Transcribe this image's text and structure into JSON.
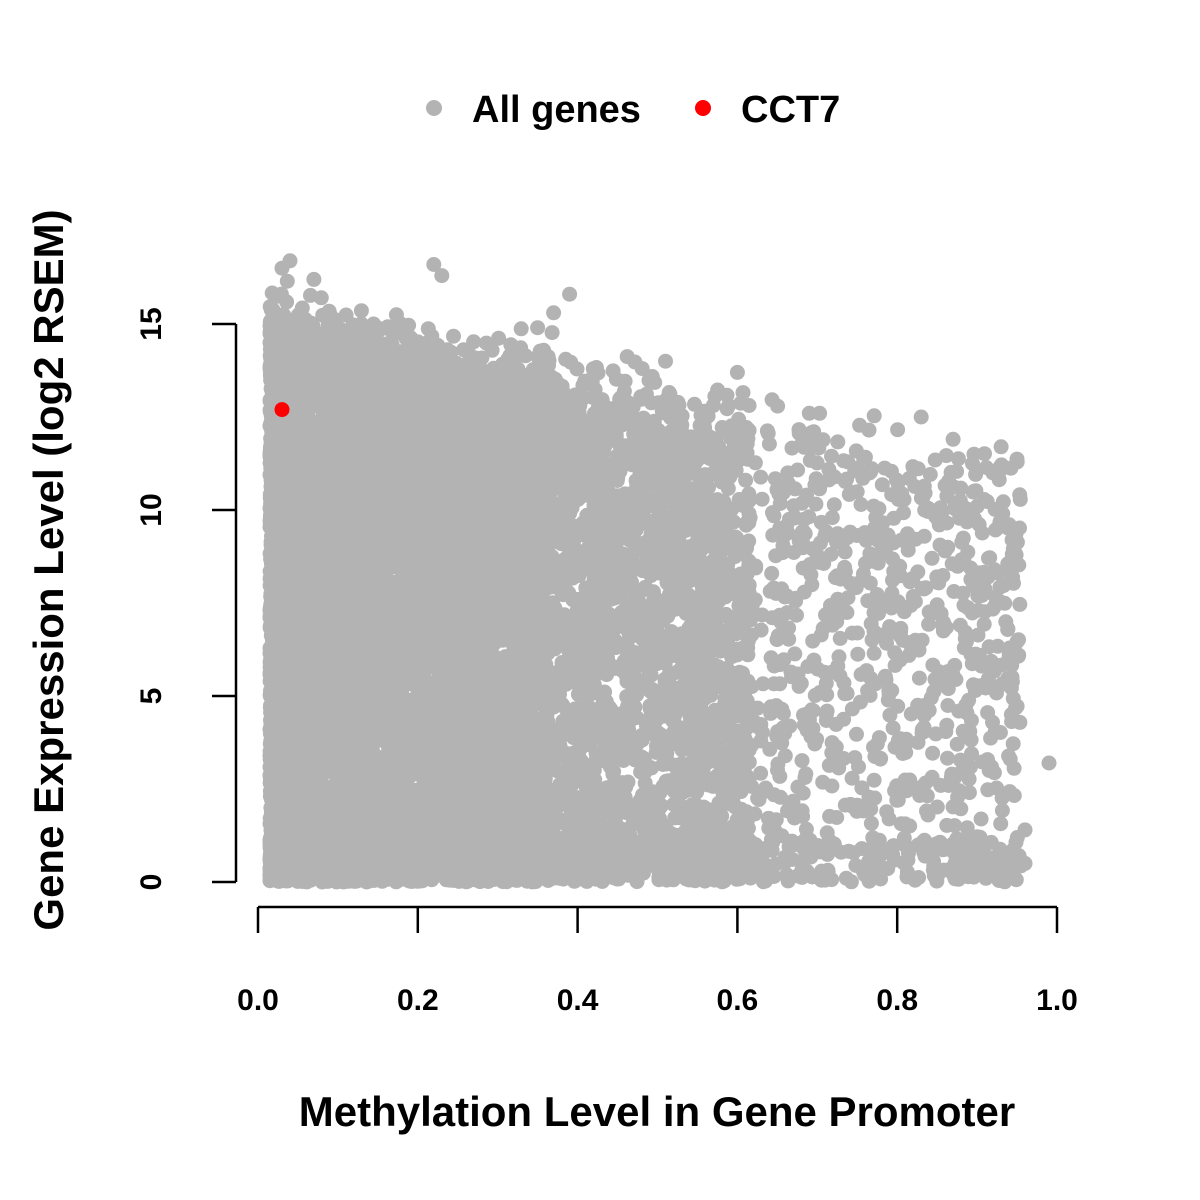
{
  "chart_data": {
    "type": "scatter",
    "title": "",
    "xlabel": "Methylation Level in Gene Promoter",
    "ylabel": "Gene Expression Level (log2 RSEM)",
    "xlim": [
      0.0,
      1.0
    ],
    "ylim": [
      0,
      15
    ],
    "x_ticks": [
      0.0,
      0.2,
      0.4,
      0.6,
      0.8,
      1.0
    ],
    "x_tick_labels": [
      "0.0",
      "0.2",
      "0.4",
      "0.6",
      "0.8",
      "1.0"
    ],
    "y_ticks": [
      0,
      5,
      10,
      15
    ],
    "y_tick_labels": [
      "0",
      "5",
      "10",
      "15"
    ],
    "legend": {
      "placement": "top",
      "entries": [
        {
          "label": "All genes",
          "color": "#b3b3b3"
        },
        {
          "label": "CCT7",
          "color": "#ff0000"
        }
      ]
    },
    "series": [
      {
        "name": "All genes",
        "color": "#b3b3b3",
        "approx_points": 12000,
        "description_points": [
          [
            0.04,
            16.7
          ],
          [
            0.03,
            16.5
          ],
          [
            0.07,
            16.2
          ],
          [
            0.22,
            16.6
          ],
          [
            0.23,
            16.3
          ],
          [
            0.39,
            15.8
          ],
          [
            0.37,
            15.3
          ],
          [
            0.35,
            14.9
          ],
          [
            0.51,
            14.0
          ],
          [
            0.6,
            13.7
          ],
          [
            0.69,
            12.6
          ],
          [
            0.83,
            12.5
          ],
          [
            0.87,
            11.9
          ],
          [
            0.93,
            11.7
          ],
          [
            0.95,
            11.3
          ],
          [
            0.99,
            3.2
          ],
          [
            0.96,
            1.4
          ],
          [
            0.96,
            0.5
          ],
          [
            0.02,
            1.8
          ],
          [
            0.02,
            1.3
          ]
        ]
      },
      {
        "name": "CCT7",
        "color": "#ff0000",
        "points": [
          [
            0.03,
            12.7
          ]
        ]
      }
    ]
  }
}
